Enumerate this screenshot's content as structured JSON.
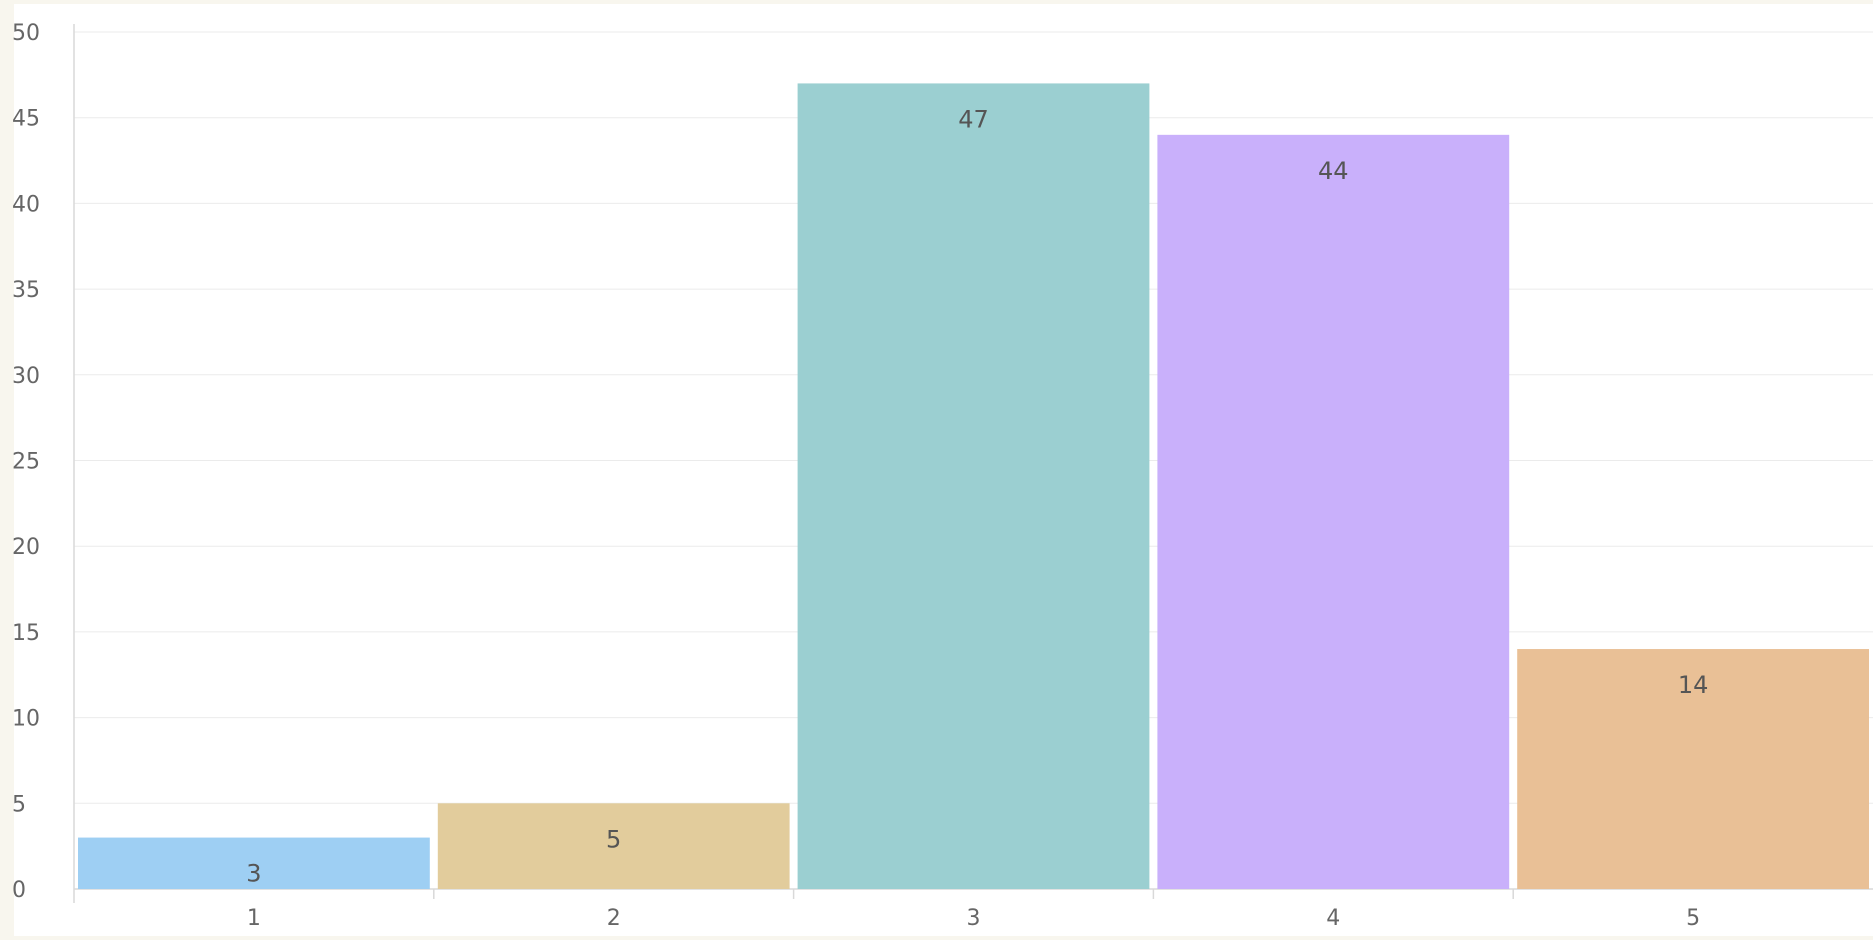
{
  "chart_data": {
    "type": "bar",
    "categories": [
      "1",
      "2",
      "3",
      "4",
      "5"
    ],
    "values": [
      3,
      5,
      47,
      44,
      14
    ],
    "data_labels": [
      "3",
      "5",
      "47",
      "44",
      "14"
    ],
    "title": "",
    "xlabel": "",
    "ylabel": "",
    "ylim": [
      0,
      50
    ],
    "yticks": [
      "0",
      "5",
      "10",
      "15",
      "20",
      "25",
      "30",
      "35",
      "40",
      "45",
      "50"
    ],
    "yticks_values": [
      0,
      5,
      10,
      15,
      20,
      25,
      30,
      35,
      40,
      45,
      50
    ],
    "grid": true,
    "legend": "none",
    "bar_colors": [
      "#9ecff3",
      "#e2cc9c",
      "#9bcfd1",
      "#c9b0fb",
      "#e9c096"
    ],
    "gridline_color": "#ebebeb",
    "axis_color": "#d9d9d9",
    "background_color": "#f8f6ee",
    "plot_background_color": "#ffffff"
  }
}
